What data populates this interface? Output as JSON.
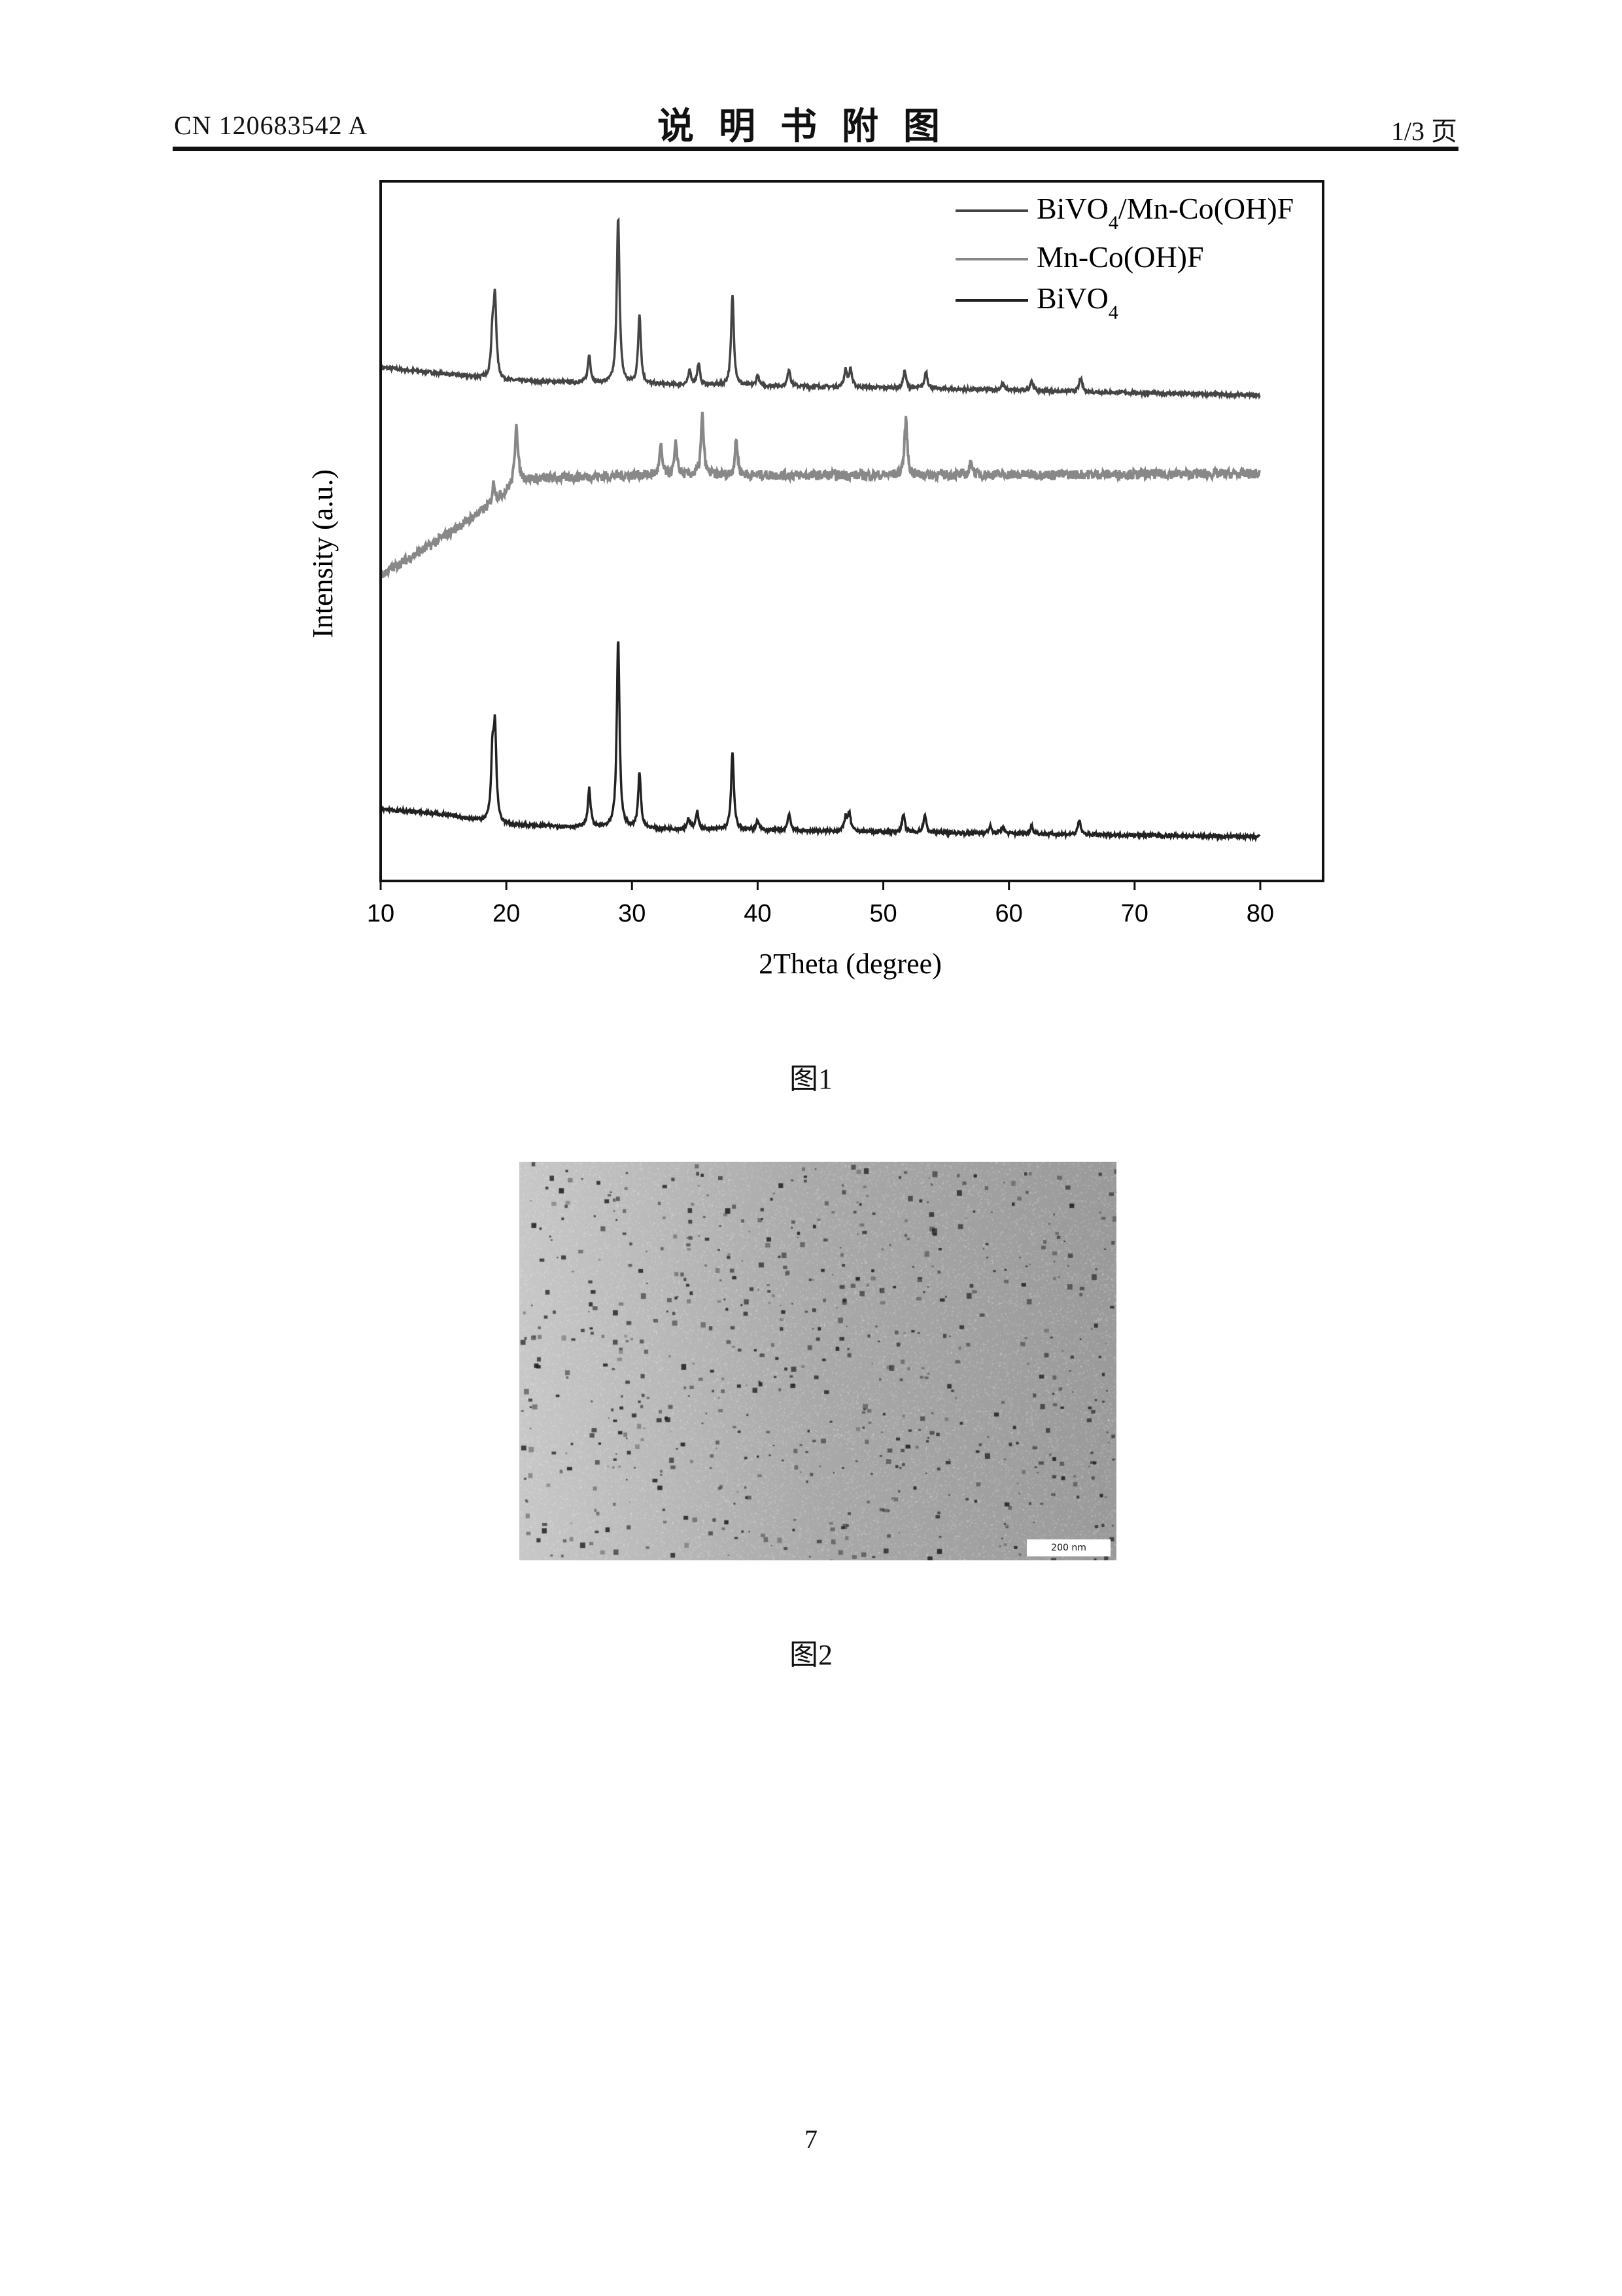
{
  "header": {
    "doc_number": "CN 120683542 A",
    "title": "说明书附图",
    "page_of": "1/3 页"
  },
  "figure1": {
    "caption": "图1",
    "chart_data": {
      "type": "line",
      "xlabel": "2Theta (degree)",
      "ylabel": "Intensity (a.u.)",
      "xlim": [
        10,
        85
      ],
      "ylim": [
        0,
        100
      ],
      "x_ticks": [
        "10",
        "20",
        "30",
        "40",
        "50",
        "60",
        "70",
        "80"
      ],
      "y_ticks": [],
      "grid": false,
      "legend_position": "top-right",
      "series": [
        {
          "name": "BiVO4/Mn-Co(OH)F",
          "legend_main": "BiVO",
          "legend_sub": "4",
          "legend_rest": "/Mn-Co(OH)F",
          "color": "#444444",
          "baseline": [
            [
              10,
              73.4
            ],
            [
              15,
              72.5
            ],
            [
              20,
              71.5
            ],
            [
              30,
              71
            ],
            [
              50,
              70.5
            ],
            [
              80,
              69.4
            ]
          ],
          "peaks": [
            [
              18.9,
              6
            ],
            [
              19.1,
              11
            ],
            [
              26.6,
              4
            ],
            [
              28.9,
              24
            ],
            [
              30.6,
              10
            ],
            [
              34.6,
              2
            ],
            [
              35.3,
              3
            ],
            [
              38.0,
              13
            ],
            [
              40.0,
              1.5
            ],
            [
              42.5,
              2.5
            ],
            [
              47.0,
              2.5
            ],
            [
              47.4,
              2.5
            ],
            [
              51.7,
              2.5
            ],
            [
              53.4,
              2.5
            ],
            [
              59.5,
              1
            ],
            [
              61.8,
              1.5
            ],
            [
              65.7,
              2
            ]
          ]
        },
        {
          "name": "Mn-Co(OH)F",
          "legend_main": "Mn-Co(OH)F",
          "legend_sub": "",
          "legend_rest": "",
          "color": "#888888",
          "baseline": [
            [
              10,
              43.7
            ],
            [
              14,
              48
            ],
            [
              19,
              54
            ],
            [
              21,
              57.4
            ],
            [
              30,
              58
            ],
            [
              50,
              58
            ],
            [
              80,
              58.2
            ]
          ],
          "peaks": [
            [
              19.0,
              3
            ],
            [
              20.8,
              8.5
            ],
            [
              32.3,
              4
            ],
            [
              33.5,
              4.5
            ],
            [
              35.6,
              8.5
            ],
            [
              38.3,
              5
            ],
            [
              51.8,
              8
            ],
            [
              57.0,
              2
            ]
          ]
        },
        {
          "name": "BiVO4",
          "legend_main": "BiVO",
          "legend_sub": "4",
          "legend_rest": "",
          "color": "#222222",
          "baseline": [
            [
              10,
              10.3
            ],
            [
              15,
              9.5
            ],
            [
              20,
              8
            ],
            [
              30,
              7.5
            ],
            [
              50,
              7
            ],
            [
              80,
              6.3
            ]
          ],
          "peaks": [
            [
              18.9,
              9
            ],
            [
              19.1,
              12.5
            ],
            [
              26.6,
              5.5
            ],
            [
              28.9,
              27
            ],
            [
              30.6,
              8
            ],
            [
              34.5,
              1.5
            ],
            [
              35.2,
              2.5
            ],
            [
              38.0,
              11
            ],
            [
              40.0,
              1.5
            ],
            [
              42.5,
              2.5
            ],
            [
              47.0,
              2
            ],
            [
              47.3,
              2.5
            ],
            [
              51.6,
              2.5
            ],
            [
              53.3,
              2.5
            ],
            [
              58.5,
              1
            ],
            [
              59.5,
              1
            ],
            [
              61.8,
              1.2
            ],
            [
              65.6,
              2
            ]
          ]
        }
      ]
    }
  },
  "figure2": {
    "caption": "图2",
    "scale_bar": "200 nm"
  },
  "footer": {
    "page_number": "7"
  }
}
